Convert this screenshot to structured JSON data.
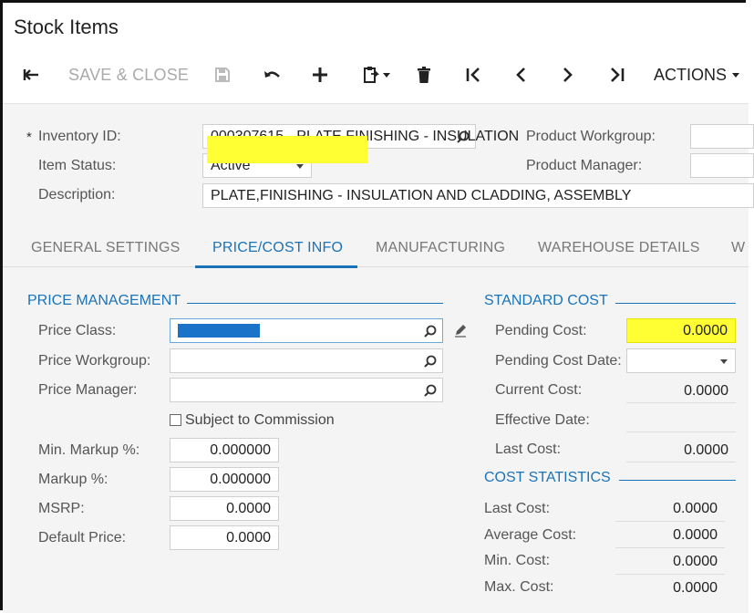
{
  "page_title": "Stock Items",
  "toolbar": {
    "save_close_label": "SAVE & CLOSE",
    "actions_label": "ACTIONS"
  },
  "header_form": {
    "inventory_id_label": "Inventory ID:",
    "inventory_id_value": "000307615 - PLATE,FINISHING - INSULATION",
    "item_status_label": "Item Status:",
    "item_status_value": "Active",
    "description_label": "Description:",
    "description_value": "PLATE,FINISHING - INSULATION AND CLADDING, ASSEMBLY",
    "product_workgroup_label": "Product Workgroup:",
    "product_manager_label": "Product Manager:"
  },
  "tabs": [
    {
      "label": "GENERAL SETTINGS"
    },
    {
      "label": "PRICE/COST INFO"
    },
    {
      "label": "MANUFACTURING"
    },
    {
      "label": "WAREHOUSE DETAILS"
    },
    {
      "label": "W"
    }
  ],
  "price_management": {
    "heading": "PRICE MANAGEMENT",
    "price_class_label": "Price Class:",
    "price_workgroup_label": "Price Workgroup:",
    "price_manager_label": "Price Manager:",
    "subject_to_commission_label": "Subject to Commission",
    "min_markup_label": "Min. Markup %:",
    "min_markup_value": "0.000000",
    "markup_label": "Markup %:",
    "markup_value": "0.000000",
    "msrp_label": "MSRP:",
    "msrp_value": "0.0000",
    "default_price_label": "Default Price:",
    "default_price_value": "0.0000"
  },
  "standard_cost": {
    "heading": "STANDARD COST",
    "pending_cost_label": "Pending Cost:",
    "pending_cost_value": "0.0000",
    "pending_cost_date_label": "Pending Cost Date:",
    "current_cost_label": "Current Cost:",
    "current_cost_value": "0.0000",
    "effective_date_label": "Effective Date:",
    "last_cost_label": "Last Cost:",
    "last_cost_value": "0.0000"
  },
  "cost_statistics": {
    "heading": "COST STATISTICS",
    "last_cost_label": "Last Cost:",
    "last_cost_value": "0.0000",
    "average_cost_label": "Average Cost:",
    "average_cost_value": "0.0000",
    "min_cost_label": "Min. Cost:",
    "min_cost_value": "0.0000",
    "max_cost_label": "Max. Cost:",
    "max_cost_value": "0.0000"
  },
  "colors": {
    "accent": "#1a73b8",
    "highlight": "#ffff33",
    "redacted": "#1a73c8"
  },
  "icons": [
    "back-arrow-icon",
    "save-icon",
    "undo-icon",
    "add-icon",
    "paste-icon",
    "delete-icon",
    "first-record-icon",
    "previous-icon",
    "next-icon",
    "last-record-icon",
    "search-icon",
    "pencil-icon",
    "chevron-down-icon"
  ]
}
